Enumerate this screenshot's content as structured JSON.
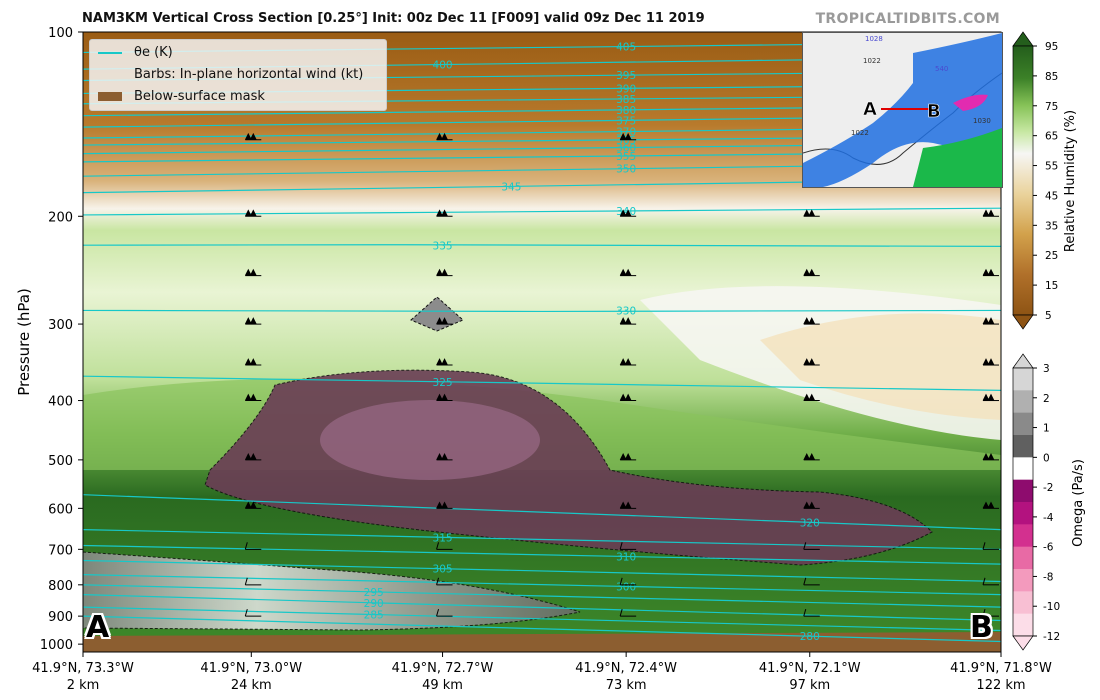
{
  "header": {
    "title": "NAM3KM Vertical Cross Section [0.25°] Init: 00z Dec 11 [F009] valid 09z Dec 11 2019",
    "brand": "TROPICALTIDBITS.COM"
  },
  "legend": {
    "theta_label": "θe (K)",
    "barbs_label": "Barbs: In-plane horizontal wind (kt)",
    "mask_label": "Below-surface mask"
  },
  "endpoints": {
    "start": "A",
    "end": "B"
  },
  "inset_map": {
    "labels": [
      "A",
      "B",
      "1028",
      "1022",
      "540",
      "1022",
      "1030"
    ]
  },
  "chart_data": {
    "type": "heatmap",
    "ylabel": "Pressure (hPa)",
    "y_axis": {
      "scale": "log",
      "ylim": [
        1030,
        100
      ],
      "ticks": [
        100,
        200,
        300,
        400,
        500,
        600,
        700,
        800,
        900,
        1000
      ]
    },
    "x_ticks": [
      {
        "coord": "41.9°N, 73.3°W",
        "dist": "2 km",
        "km": 2
      },
      {
        "coord": "41.9°N, 73.0°W",
        "dist": "24 km",
        "km": 24
      },
      {
        "coord": "41.9°N, 72.7°W",
        "dist": "49 km",
        "km": 49
      },
      {
        "coord": "41.9°N, 72.4°W",
        "dist": "73 km",
        "km": 73
      },
      {
        "coord": "41.9°N, 72.1°W",
        "dist": "97 km",
        "km": 97
      },
      {
        "coord": "41.9°N, 71.8°W",
        "dist": "122 km",
        "km": 122
      }
    ],
    "rh_colorbar": {
      "label": "Relative Humidity (%)",
      "ticks": [
        5,
        15,
        25,
        35,
        45,
        55,
        65,
        75,
        85,
        95
      ],
      "colors": [
        "#8e5414",
        "#a96a1e",
        "#c0852f",
        "#d2a14b",
        "#e0bc72",
        "#ead39c",
        "#f4e8c8",
        "#f6f6f4",
        "#e3f2d0",
        "#c8e8a4",
        "#a9d77c",
        "#86c257",
        "#5fa33c",
        "#3c8128",
        "#245e1c"
      ]
    },
    "omega_colorbar": {
      "label": "Omega (Pa/s)",
      "ticks": [
        3,
        2,
        1,
        0,
        -2,
        -4,
        -6,
        -8,
        -10,
        -12
      ],
      "colors": [
        "#d6d6d6",
        "#b0b0b0",
        "#8a8a8a",
        "#606060",
        "#ffffff",
        "#8e0c6e",
        "#b3127f",
        "#d3308f",
        "#e86aa5",
        "#f39abd",
        "#f8bfd3",
        "#fcdde8"
      ]
    },
    "theta_e_labels": [
      405,
      400,
      395,
      390,
      385,
      380,
      375,
      370,
      365,
      360,
      355,
      350,
      345,
      340,
      335,
      330,
      325,
      320,
      315,
      310,
      305,
      300,
      295,
      290,
      285,
      280
    ],
    "theta_e_lines": [
      {
        "value": 405,
        "p_left": 108,
        "p_right": 104
      },
      {
        "value": 400,
        "p_left": 115,
        "p_right": 110
      },
      {
        "value": 395,
        "p_left": 120,
        "p_right": 116
      },
      {
        "value": 390,
        "p_left": 126,
        "p_right": 122
      },
      {
        "value": 385,
        "p_left": 131,
        "p_right": 127
      },
      {
        "value": 380,
        "p_left": 137,
        "p_right": 132
      },
      {
        "value": 375,
        "p_left": 143,
        "p_right": 137
      },
      {
        "value": 370,
        "p_left": 149,
        "p_right": 143
      },
      {
        "value": 365,
        "p_left": 153,
        "p_right": 148
      },
      {
        "value": 360,
        "p_left": 158,
        "p_right": 152
      },
      {
        "value": 355,
        "p_left": 163,
        "p_right": 157
      },
      {
        "value": 350,
        "p_left": 172,
        "p_right": 164
      },
      {
        "value": 345,
        "p_left": 183,
        "p_right": 174
      },
      {
        "value": 340,
        "p_left": 199,
        "p_right": 194
      },
      {
        "value": 335,
        "p_left": 223,
        "p_right": 224
      },
      {
        "value": 330,
        "p_left": 285,
        "p_right": 285
      },
      {
        "value": 325,
        "p_left": 365,
        "p_right": 385
      },
      {
        "value": 320,
        "p_left": 570,
        "p_right": 650
      },
      {
        "value": 315,
        "p_left": 650,
        "p_right": 700
      },
      {
        "value": 310,
        "p_left": 690,
        "p_right": 740
      },
      {
        "value": 305,
        "p_left": 730,
        "p_right": 790
      },
      {
        "value": 300,
        "p_left": 770,
        "p_right": 830
      },
      {
        "value": 295,
        "p_left": 800,
        "p_right": 870
      },
      {
        "value": 290,
        "p_left": 830,
        "p_right": 915
      },
      {
        "value": 285,
        "p_left": 870,
        "p_right": 950
      },
      {
        "value": 280,
        "p_left": 900,
        "p_right": 990
      }
    ],
    "barb_columns_km": [
      24,
      49,
      73,
      97,
      122
    ],
    "barb_levels_hpa": [
      150,
      200,
      250,
      300,
      350,
      400,
      500,
      600,
      700,
      800,
      900
    ]
  }
}
